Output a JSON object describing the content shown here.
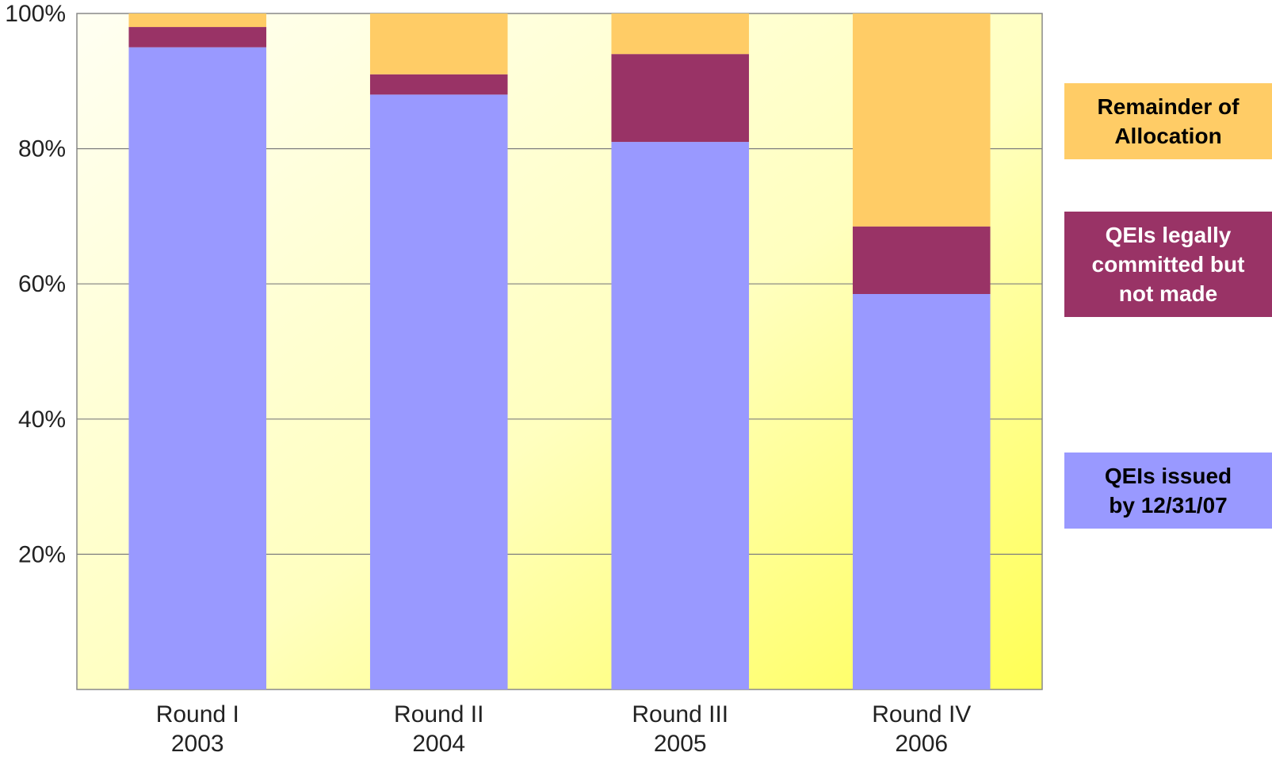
{
  "chart_data": {
    "type": "bar",
    "stacked": true,
    "categories": [
      [
        "Round I",
        "2003"
      ],
      [
        "Round II",
        "2004"
      ],
      [
        "Round III",
        "2005"
      ],
      [
        "Round IV",
        "2006"
      ]
    ],
    "series": [
      {
        "name": "QEIs issued by 12/31/07",
        "legend_lines": [
          "QEIs issued",
          "by 12/31/07"
        ],
        "color": "#9999ff",
        "text_color": "#000000",
        "values": [
          95,
          88,
          81,
          58.5
        ]
      },
      {
        "name": "QEIs legally committed but not made",
        "legend_lines": [
          "QEIs legally",
          "committed but",
          "not made"
        ],
        "color": "#993366",
        "text_color": "#ffffff",
        "values": [
          3,
          3,
          13,
          10
        ]
      },
      {
        "name": "Remainder of Allocation",
        "legend_lines": [
          "Remainder of",
          "Allocation"
        ],
        "color": "#ffcc66",
        "text_color": "#000000",
        "values": [
          2,
          9,
          6,
          31.5
        ]
      }
    ],
    "y_ticks": [
      "20%",
      "40%",
      "60%",
      "80%",
      "100%"
    ],
    "y_tick_values": [
      20,
      40,
      60,
      80,
      100
    ],
    "ylim": [
      0,
      100
    ],
    "grid": true,
    "legend_position": "right",
    "background": "light-yellow-gradient"
  }
}
